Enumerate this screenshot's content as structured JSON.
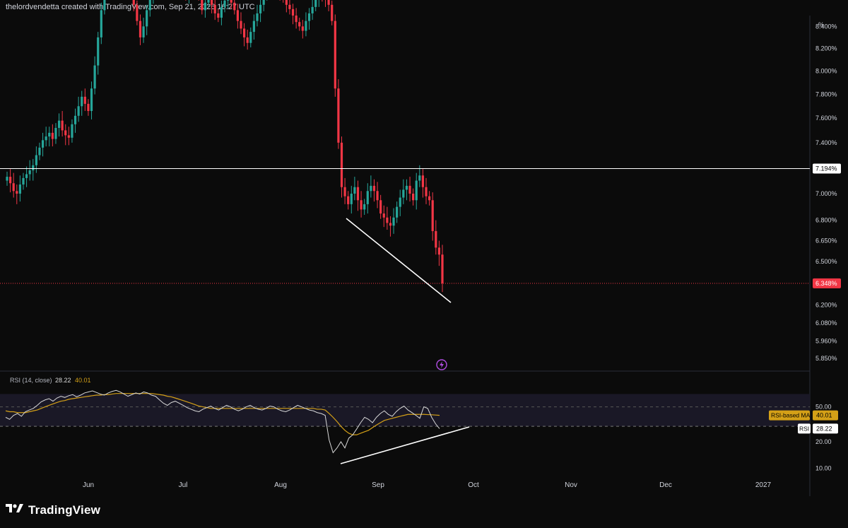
{
  "header": {
    "attribution": "thelordvendetta created with TradingView.com, Sep 21, 2026 16:27 UTC"
  },
  "footer": {
    "brand": "TradingView",
    "logo_icon": "tradingview-logo-icon"
  },
  "colors": {
    "up": "#26a69a",
    "down": "#f23645",
    "rsi_line": "#d8d8d8",
    "rsi_ma": "#d4a017",
    "background": "#0b0b0b",
    "rsi_band": "#1a1826",
    "price_tag": "#f23645"
  },
  "price_axis": {
    "unit_label": "%",
    "ticks": [
      "8.400%",
      "8.200%",
      "8.000%",
      "7.800%",
      "7.600%",
      "7.400%",
      "7.000%",
      "6.800%",
      "6.650%",
      "6.500%",
      "6.200%",
      "6.080%",
      "5.960%",
      "5.850%"
    ]
  },
  "rsi_pane": {
    "legend": {
      "title": "RSI (14, close)",
      "rsi_value": "28.22",
      "ma_value": "40.01"
    },
    "ticks": [
      "50.00",
      "20.00",
      "10.00"
    ],
    "ma_tag": {
      "label": "RSI-based MA",
      "value": "40.01"
    },
    "rsi_tag": {
      "label": "RSI",
      "value": "28.22"
    }
  },
  "time_axis": {
    "ticks": [
      "Jun",
      "Jul",
      "Aug",
      "Sep",
      "Oct",
      "Nov",
      "Dec",
      "2027"
    ]
  },
  "horizontal_line": {
    "value": 7.194,
    "label": "7.194%"
  },
  "last_price": {
    "value": 6.348,
    "label": "6.348%"
  },
  "chart_data": {
    "type": "candlestick",
    "unit": "%",
    "last_price": 6.348,
    "resistance_level": 7.194,
    "price_close_series": [
      7.13,
      7.08,
      7.02,
      7.0,
      7.07,
      7.12,
      7.15,
      7.18,
      7.22,
      7.3,
      7.36,
      7.42,
      7.45,
      7.48,
      7.43,
      7.52,
      7.58,
      7.5,
      7.46,
      7.44,
      7.55,
      7.62,
      7.7,
      7.78,
      7.72,
      7.66,
      7.85,
      8.05,
      8.3,
      8.55,
      8.75,
      8.8,
      8.85,
      8.9,
      8.88,
      8.92,
      8.95,
      8.9,
      8.75,
      8.6,
      8.45,
      8.3,
      8.4,
      8.55,
      8.65,
      8.72,
      8.78,
      8.82,
      8.85,
      8.8,
      8.85,
      8.9,
      8.88,
      8.8,
      8.72,
      8.68,
      8.75,
      8.82,
      8.78,
      8.7,
      8.55,
      8.62,
      8.66,
      8.6,
      8.52,
      8.48,
      8.58,
      8.64,
      8.7,
      8.62,
      8.55,
      8.45,
      8.38,
      8.3,
      8.25,
      8.35,
      8.45,
      8.52,
      8.6,
      8.68,
      8.72,
      8.76,
      8.8,
      8.74,
      8.7,
      8.66,
      8.6,
      8.56,
      8.5,
      8.44,
      8.4,
      8.36,
      8.45,
      8.52,
      8.58,
      8.65,
      8.7,
      8.68,
      8.66,
      8.6,
      8.45,
      7.85,
      7.4,
      7.05,
      6.98,
      6.92,
      7.0,
      7.05,
      6.95,
      6.88,
      6.92,
      7.02,
      7.06,
      7.02,
      6.95,
      6.85,
      6.82,
      6.78,
      6.76,
      6.82,
      6.9,
      6.97,
      7.03,
      7.06,
      7.0,
      6.95,
      7.1,
      7.14,
      7.05,
      6.98,
      6.95,
      6.72,
      6.6,
      6.55,
      6.348
    ],
    "rsi": {
      "period": 14,
      "rsi_value": 28.22,
      "ma_value": 40.01,
      "rsi_series": [
        38,
        36,
        40,
        42,
        39,
        44,
        46,
        48,
        52,
        57,
        60,
        62,
        58,
        63,
        66,
        64,
        67,
        69,
        65,
        68,
        72,
        74,
        76,
        73,
        70,
        68,
        72,
        75,
        77,
        74,
        70,
        66,
        69,
        72,
        70,
        74,
        72,
        68,
        66,
        60,
        55,
        52,
        56,
        58,
        55,
        52,
        49,
        47,
        45,
        44,
        47,
        49,
        51,
        48,
        46,
        49,
        52,
        50,
        47,
        45,
        47,
        50,
        52,
        49,
        47,
        46,
        48,
        51,
        50,
        47,
        45,
        44,
        46,
        49,
        52,
        50,
        48,
        46,
        45,
        43,
        42,
        40,
        21,
        15,
        17,
        20,
        17,
        22,
        24,
        28,
        33,
        38,
        36,
        33,
        38,
        42,
        45,
        41,
        39,
        44,
        48,
        51,
        46,
        43,
        40,
        37,
        50,
        48,
        38,
        32,
        28.22
      ],
      "ma_series": [
        45,
        44,
        44,
        43,
        43,
        43,
        44,
        45,
        46,
        48,
        50,
        52,
        54,
        56,
        58,
        59,
        61,
        62,
        63,
        64,
        65,
        66,
        67,
        68,
        68,
        69,
        69,
        70,
        71,
        71,
        71,
        71,
        71,
        71,
        71,
        71,
        71,
        71,
        70,
        69,
        68,
        66,
        65,
        63,
        61,
        59,
        57,
        55,
        53,
        51,
        50,
        49,
        48,
        48,
        48,
        48,
        48,
        48,
        48,
        48,
        48,
        48,
        48,
        48,
        48,
        48,
        48,
        48,
        48,
        48,
        48,
        48,
        48,
        48,
        48,
        48,
        48,
        48,
        48,
        47,
        47,
        46,
        42,
        38,
        34,
        30,
        27,
        25,
        24,
        24,
        25,
        26,
        27,
        29,
        31,
        33,
        35,
        36,
        37,
        38,
        39,
        40,
        41,
        41,
        41,
        41,
        41,
        40.8,
        40.6,
        40.3,
        40.01
      ]
    },
    "annotations": [
      "support trendline on price (falling)",
      "rising trendline on RSI lows (bullish divergence)"
    ],
    "xlabel": "",
    "ylabel": "",
    "title": ""
  }
}
